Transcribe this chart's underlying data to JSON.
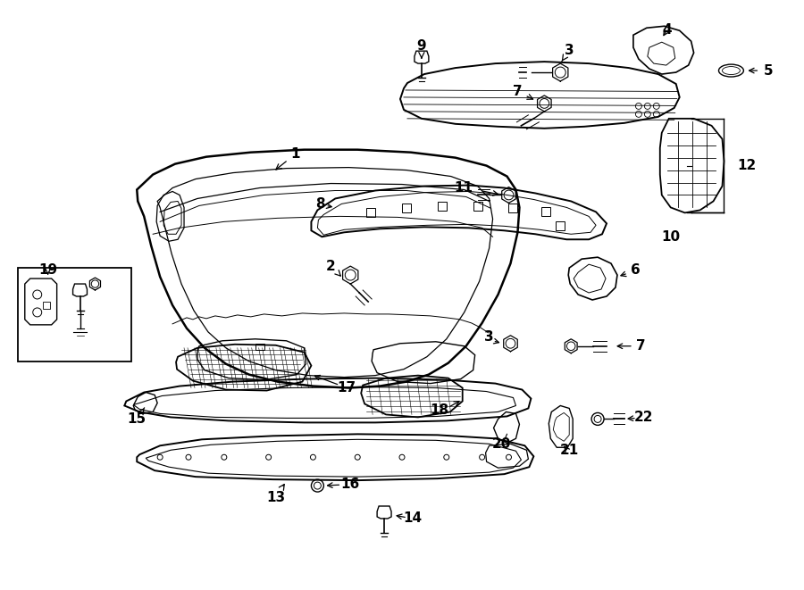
{
  "background_color": "#ffffff",
  "line_color": "#000000",
  "lw_main": 1.5,
  "lw_thin": 0.8,
  "lw_xtra": 0.5
}
